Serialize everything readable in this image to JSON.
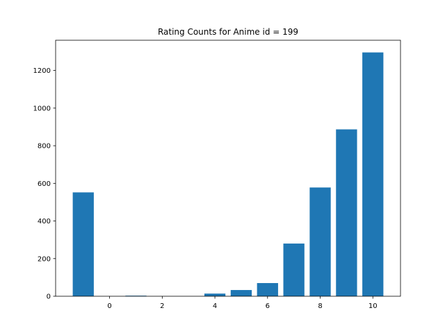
{
  "chart_data": {
    "type": "bar",
    "title": "Rating Counts for Anime id = 199",
    "xlabel": "",
    "ylabel": "",
    "x": [
      -1,
      1,
      4,
      5,
      6,
      7,
      8,
      9,
      10
    ],
    "values": [
      552,
      3,
      14,
      33,
      70,
      280,
      578,
      887,
      1296
    ],
    "xlim": [
      -2.05,
      11.05
    ],
    "ylim": [
      0,
      1360.8
    ],
    "xticks": [
      0,
      2,
      4,
      6,
      8,
      10
    ],
    "xtick_labels": [
      "0",
      "2",
      "4",
      "6",
      "8",
      "10"
    ],
    "yticks": [
      0,
      200,
      400,
      600,
      800,
      1000,
      1200
    ],
    "ytick_labels": [
      "0",
      "200",
      "400",
      "600",
      "800",
      "1000",
      "1200"
    ],
    "bar_color": "#1f77b4",
    "grid": false,
    "legend": "none"
  }
}
